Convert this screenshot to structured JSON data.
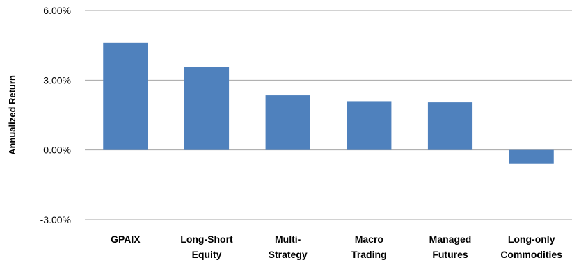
{
  "chart_data": {
    "type": "bar",
    "title": "",
    "xlabel": "",
    "ylabel": "Annualized Return",
    "ylim": [
      -3.0,
      6.0
    ],
    "yticks": [
      "-3.00%",
      "0.00%",
      "3.00%",
      "6.00%"
    ],
    "ytick_values": [
      -3.0,
      0.0,
      3.0,
      6.0
    ],
    "unit": "%",
    "grid": "horizontal",
    "legend": "none",
    "bar_color": "#4F81BD",
    "grid_color": "#A6A6A6",
    "categories": [
      [
        "GPAIX"
      ],
      [
        "Long-Short",
        "Equity"
      ],
      [
        "Multi-",
        "Strategy"
      ],
      [
        "Macro",
        "Trading"
      ],
      [
        "Managed",
        "Futures"
      ],
      [
        "Long-only",
        "Commodities"
      ]
    ],
    "values": [
      4.6,
      3.55,
      2.35,
      2.1,
      2.05,
      -0.6
    ]
  }
}
